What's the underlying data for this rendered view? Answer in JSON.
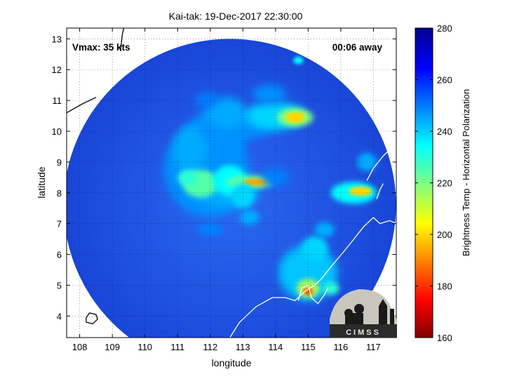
{
  "chart_data": {
    "type": "heatmap",
    "title": "Kai-tak: 19-Dec-2017 22:30:00",
    "xlabel": "longitude",
    "ylabel": "latitude",
    "xlim": [
      107.6,
      117.7
    ],
    "ylim": [
      3.3,
      13.35
    ],
    "xticks": [
      108,
      109,
      110,
      111,
      112,
      113,
      114,
      115,
      116,
      117
    ],
    "yticks": [
      4,
      5,
      6,
      7,
      8,
      9,
      10,
      11,
      12,
      13
    ],
    "grid": true,
    "annotations": {
      "vmax": "Vmax: 35 kts",
      "time_away": "00:06 away",
      "logo": "CIMSS"
    },
    "colorbar": {
      "label": "Brightness Temp - Horizontal Polarization",
      "min": 160,
      "max": 280,
      "ticks": [
        160,
        180,
        200,
        220,
        240,
        260,
        280
      ]
    },
    "swath": {
      "center": [
        112.6,
        7.6
      ],
      "radius_lat": 5.4
    },
    "cold_features": [
      {
        "lon": 111.7,
        "lat": 8.3,
        "temp": 210
      },
      {
        "lon": 113.4,
        "lat": 8.35,
        "temp": 195
      },
      {
        "lon": 114.6,
        "lat": 10.45,
        "temp": 200
      },
      {
        "lon": 116.5,
        "lat": 8.0,
        "temp": 198
      },
      {
        "lon": 115.0,
        "lat": 4.9,
        "temp": 190
      },
      {
        "lon": 114.7,
        "lat": 12.3,
        "temp": 235
      }
    ]
  },
  "colors": {
    "background_field": "#1f55e0",
    "land_outline": "#ffffff",
    "coast_outline_outside": "#000000"
  }
}
